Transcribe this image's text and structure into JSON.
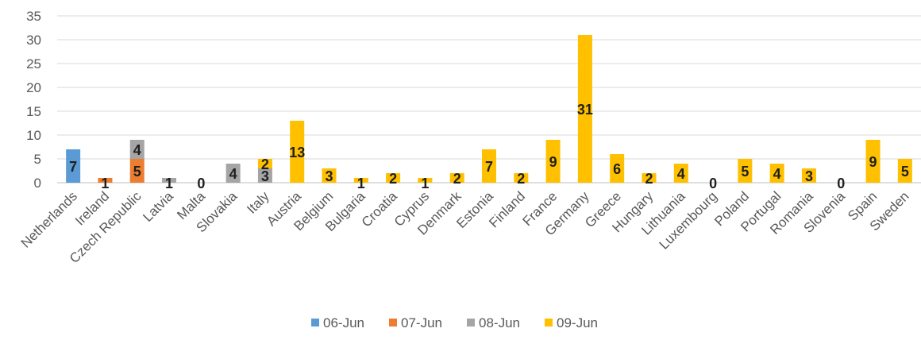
{
  "chart_data": {
    "type": "bar",
    "stacked": true,
    "categories": [
      "Netherlands",
      "Ireland",
      "Czech Republic",
      "Latvia",
      "Malta",
      "Slovakia",
      "Italy",
      "Austria",
      "Belgium",
      "Bulgaria",
      "Croatia",
      "Cyprus",
      "Denmark",
      "Estonia",
      "Finland",
      "France",
      "Germany",
      "Greece",
      "Hungary",
      "Lithuania",
      "Luxembourg",
      "Poland",
      "Portugal",
      "Romania",
      "Slovenia",
      "Spain",
      "Sweden"
    ],
    "series": [
      {
        "name": "06-Jun",
        "color": "#5b9bd5",
        "values": [
          7,
          0,
          0,
          0,
          0,
          0,
          0,
          0,
          0,
          0,
          0,
          0,
          0,
          0,
          0,
          0,
          0,
          0,
          0,
          0,
          0,
          0,
          0,
          0,
          0,
          0,
          0
        ]
      },
      {
        "name": "07-Jun",
        "color": "#ed7d31",
        "values": [
          0,
          1,
          5,
          0,
          0,
          0,
          0,
          0,
          0,
          0,
          0,
          0,
          0,
          0,
          0,
          0,
          0,
          0,
          0,
          0,
          0,
          0,
          0,
          0,
          0,
          0,
          0
        ]
      },
      {
        "name": "08-Jun",
        "color": "#a5a5a5",
        "values": [
          0,
          0,
          4,
          1,
          0,
          4,
          3,
          0,
          0,
          0,
          0,
          0,
          0,
          0,
          0,
          0,
          0,
          0,
          0,
          0,
          0,
          0,
          0,
          0,
          0,
          0,
          0
        ]
      },
      {
        "name": "09-Jun",
        "color": "#ffc000",
        "values": [
          0,
          0,
          0,
          0,
          0,
          0,
          2,
          13,
          3,
          1,
          2,
          1,
          2,
          7,
          2,
          9,
          31,
          6,
          2,
          4,
          0,
          5,
          4,
          3,
          0,
          9,
          5
        ]
      }
    ],
    "data_labels": [
      {
        "category": "Netherlands",
        "series": "06-Jun",
        "value": 7
      },
      {
        "category": "Ireland",
        "series": "07-Jun",
        "value": 1
      },
      {
        "category": "Czech Republic",
        "series": "07-Jun",
        "value": 5
      },
      {
        "category": "Czech Republic",
        "series": "08-Jun",
        "value": 4
      },
      {
        "category": "Latvia",
        "series": "08-Jun",
        "value": 1
      },
      {
        "category": "Malta",
        "series": "09-Jun",
        "value": 0
      },
      {
        "category": "Slovakia",
        "series": "08-Jun",
        "value": 4
      },
      {
        "category": "Italy",
        "series": "08-Jun",
        "value": 3
      },
      {
        "category": "Italy",
        "series": "09-Jun",
        "value": 2
      },
      {
        "category": "Austria",
        "series": "09-Jun",
        "value": 13
      },
      {
        "category": "Belgium",
        "series": "09-Jun",
        "value": 3
      },
      {
        "category": "Bulgaria",
        "series": "09-Jun",
        "value": 1
      },
      {
        "category": "Croatia",
        "series": "09-Jun",
        "value": 2
      },
      {
        "category": "Cyprus",
        "series": "09-Jun",
        "value": 1
      },
      {
        "category": "Denmark",
        "series": "09-Jun",
        "value": 2
      },
      {
        "category": "Estonia",
        "series": "09-Jun",
        "value": 7
      },
      {
        "category": "Finland",
        "series": "09-Jun",
        "value": 2
      },
      {
        "category": "France",
        "series": "09-Jun",
        "value": 9
      },
      {
        "category": "Germany",
        "series": "09-Jun",
        "value": 31
      },
      {
        "category": "Greece",
        "series": "09-Jun",
        "value": 6
      },
      {
        "category": "Hungary",
        "series": "09-Jun",
        "value": 2
      },
      {
        "category": "Lithuania",
        "series": "09-Jun",
        "value": 4
      },
      {
        "category": "Luxembourg",
        "series": "09-Jun",
        "value": 0
      },
      {
        "category": "Poland",
        "series": "09-Jun",
        "value": 5
      },
      {
        "category": "Portugal",
        "series": "09-Jun",
        "value": 4
      },
      {
        "category": "Romania",
        "series": "09-Jun",
        "value": 3
      },
      {
        "category": "Slovenia",
        "series": "09-Jun",
        "value": 0
      },
      {
        "category": "Spain",
        "series": "09-Jun",
        "value": 9
      },
      {
        "category": "Sweden",
        "series": "09-Jun",
        "value": 5
      }
    ],
    "yticks": [
      0,
      5,
      10,
      15,
      20,
      25,
      30,
      35
    ],
    "ylim": [
      0,
      35
    ],
    "title": "",
    "xlabel": "",
    "ylabel": "",
    "grid": true,
    "legend_position": "bottom"
  }
}
